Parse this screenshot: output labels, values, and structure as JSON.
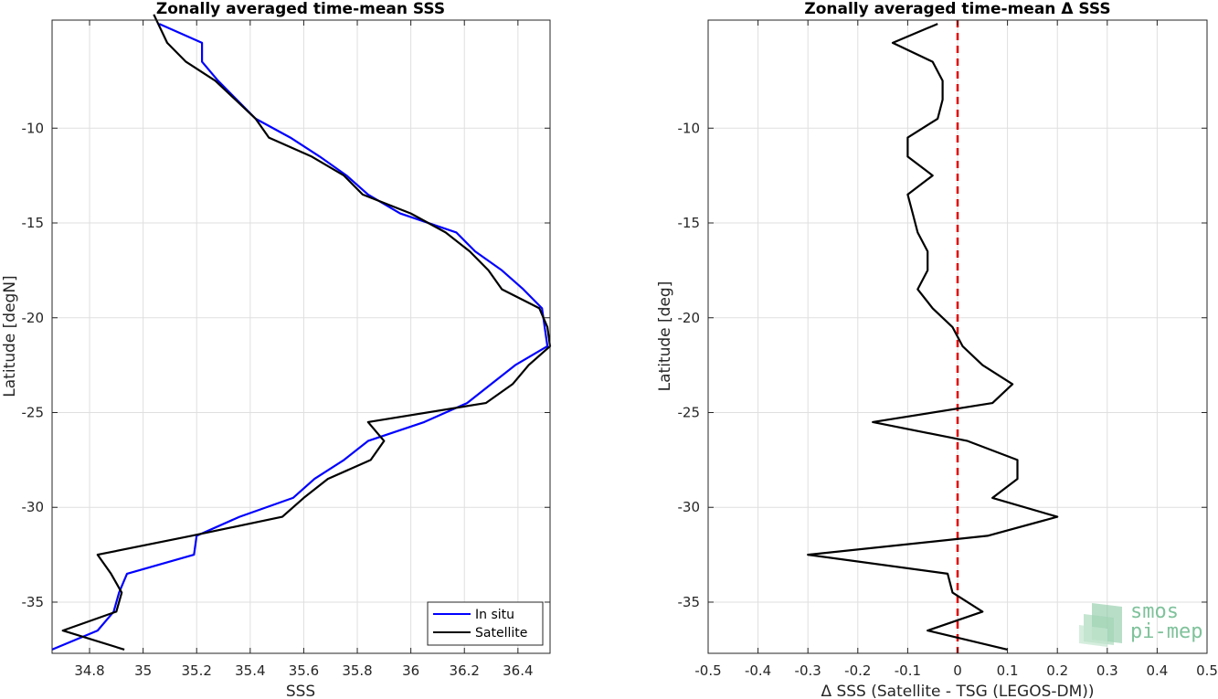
{
  "chart_data": [
    {
      "type": "line",
      "title": "Zonally averaged time-mean SSS",
      "xlabel": "SSS",
      "ylabel": "Latitude [degN]",
      "xlim": [
        34.66,
        36.52
      ],
      "ylim": [
        -37.7,
        -4.3
      ],
      "xticks": [
        34.8,
        35,
        35.2,
        35.4,
        35.6,
        35.8,
        36,
        36.2,
        36.4
      ],
      "xtick_labels": [
        "34.8",
        "35",
        "35.2",
        "35.4",
        "35.6",
        "35.8",
        "36",
        "36.2",
        "36.4"
      ],
      "yticks": [
        -10,
        -15,
        -20,
        -25,
        -30,
        -35
      ],
      "ytick_labels": [
        "-10",
        "-15",
        "-20",
        "-25",
        "-30",
        "-35"
      ],
      "grid": true,
      "legend_position": "bottom-right",
      "series": [
        {
          "name": "In situ",
          "color": "#0000ff",
          "points": [
            [
              35.06,
              -4.5
            ],
            [
              35.22,
              -5.5
            ],
            [
              35.22,
              -6.5
            ],
            [
              35.28,
              -7.5
            ],
            [
              35.42,
              -9.5
            ],
            [
              35.55,
              -10.5
            ],
            [
              35.66,
              -11.5
            ],
            [
              35.76,
              -12.5
            ],
            [
              35.84,
              -13.5
            ],
            [
              35.96,
              -14.5
            ],
            [
              36.17,
              -15.5
            ],
            [
              36.24,
              -16.5
            ],
            [
              36.34,
              -17.5
            ],
            [
              36.42,
              -18.5
            ],
            [
              36.49,
              -19.5
            ],
            [
              36.5,
              -20.5
            ],
            [
              36.51,
              -21.5
            ],
            [
              36.39,
              -22.5
            ],
            [
              36.3,
              -23.5
            ],
            [
              36.21,
              -24.5
            ],
            [
              36.05,
              -25.5
            ],
            [
              35.84,
              -26.5
            ],
            [
              35.75,
              -27.5
            ],
            [
              35.64,
              -28.5
            ],
            [
              35.56,
              -29.5
            ],
            [
              35.36,
              -30.5
            ],
            [
              35.2,
              -31.5
            ],
            [
              35.19,
              -32.5
            ],
            [
              34.94,
              -33.5
            ],
            [
              34.91,
              -34.5
            ],
            [
              34.89,
              -35.5
            ],
            [
              34.83,
              -36.5
            ],
            [
              34.66,
              -37.5
            ]
          ]
        },
        {
          "name": "Satellite",
          "color": "#000000",
          "points": [
            [
              35.04,
              -4.0
            ],
            [
              35.09,
              -5.5
            ],
            [
              35.16,
              -6.5
            ],
            [
              35.27,
              -7.5
            ],
            [
              35.42,
              -9.5
            ],
            [
              35.47,
              -10.5
            ],
            [
              35.63,
              -11.5
            ],
            [
              35.75,
              -12.5
            ],
            [
              35.82,
              -13.5
            ],
            [
              36.0,
              -14.5
            ],
            [
              36.13,
              -15.5
            ],
            [
              36.22,
              -16.5
            ],
            [
              36.29,
              -17.5
            ],
            [
              36.34,
              -18.5
            ],
            [
              36.48,
              -19.5
            ],
            [
              36.51,
              -20.5
            ],
            [
              36.52,
              -21.5
            ],
            [
              36.44,
              -22.5
            ],
            [
              36.38,
              -23.5
            ],
            [
              36.28,
              -24.5
            ],
            [
              35.84,
              -25.5
            ],
            [
              35.9,
              -26.5
            ],
            [
              35.85,
              -27.5
            ],
            [
              35.69,
              -28.5
            ],
            [
              35.6,
              -29.5
            ],
            [
              35.52,
              -30.5
            ],
            [
              35.18,
              -31.5
            ],
            [
              34.83,
              -32.5
            ],
            [
              34.88,
              -33.5
            ],
            [
              34.92,
              -34.5
            ],
            [
              34.9,
              -35.5
            ],
            [
              34.7,
              -36.5
            ],
            [
              34.93,
              -37.5
            ]
          ]
        }
      ]
    },
    {
      "type": "line",
      "title": "Zonally averaged time-mean Δ SSS",
      "xlabel": "Δ SSS (Satellite - TSG (LEGOS-DM))",
      "ylabel": "Latitude [deg]",
      "xlim": [
        -0.5,
        0.5
      ],
      "ylim": [
        -37.7,
        -4.3
      ],
      "xticks": [
        -0.5,
        -0.4,
        -0.3,
        -0.2,
        -0.1,
        0,
        0.1,
        0.2,
        0.3,
        0.4,
        0.5
      ],
      "xtick_labels": [
        "-0.5",
        "-0.4",
        "-0.3",
        "-0.2",
        "-0.1",
        "0",
        "0.1",
        "0.2",
        "0.3",
        "0.4",
        "0.5"
      ],
      "yticks": [
        -10,
        -15,
        -20,
        -25,
        -30,
        -35
      ],
      "ytick_labels": [
        "-10",
        "-15",
        "-20",
        "-25",
        "-30",
        "-35"
      ],
      "grid": true,
      "series": [
        {
          "color": "#000000",
          "points": [
            [
              -0.04,
              -4.5
            ],
            [
              -0.13,
              -5.5
            ],
            [
              -0.05,
              -6.5
            ],
            [
              -0.03,
              -7.5
            ],
            [
              -0.03,
              -8.5
            ],
            [
              -0.04,
              -9.5
            ],
            [
              -0.1,
              -10.5
            ],
            [
              -0.1,
              -11.5
            ],
            [
              -0.05,
              -12.5
            ],
            [
              -0.1,
              -13.5
            ],
            [
              -0.09,
              -14.5
            ],
            [
              -0.08,
              -15.5
            ],
            [
              -0.06,
              -16.5
            ],
            [
              -0.06,
              -17.5
            ],
            [
              -0.08,
              -18.5
            ],
            [
              -0.05,
              -19.5
            ],
            [
              -0.01,
              -20.5
            ],
            [
              0.01,
              -21.5
            ],
            [
              0.05,
              -22.5
            ],
            [
              0.11,
              -23.5
            ],
            [
              0.07,
              -24.5
            ],
            [
              -0.17,
              -25.5
            ],
            [
              0.02,
              -26.5
            ],
            [
              0.12,
              -27.5
            ],
            [
              0.12,
              -28.5
            ],
            [
              0.07,
              -29.5
            ],
            [
              0.2,
              -30.5
            ],
            [
              0.06,
              -31.5
            ],
            [
              -0.3,
              -32.5
            ],
            [
              -0.02,
              -33.5
            ],
            [
              -0.01,
              -34.5
            ],
            [
              0.05,
              -35.5
            ],
            [
              -0.06,
              -36.5
            ],
            [
              0.1,
              -37.5
            ]
          ]
        }
      ],
      "reference_line": {
        "x": 0,
        "color": "#e00000",
        "style": "dashed"
      },
      "logo_text": [
        "smos",
        "pi-mep"
      ]
    }
  ]
}
